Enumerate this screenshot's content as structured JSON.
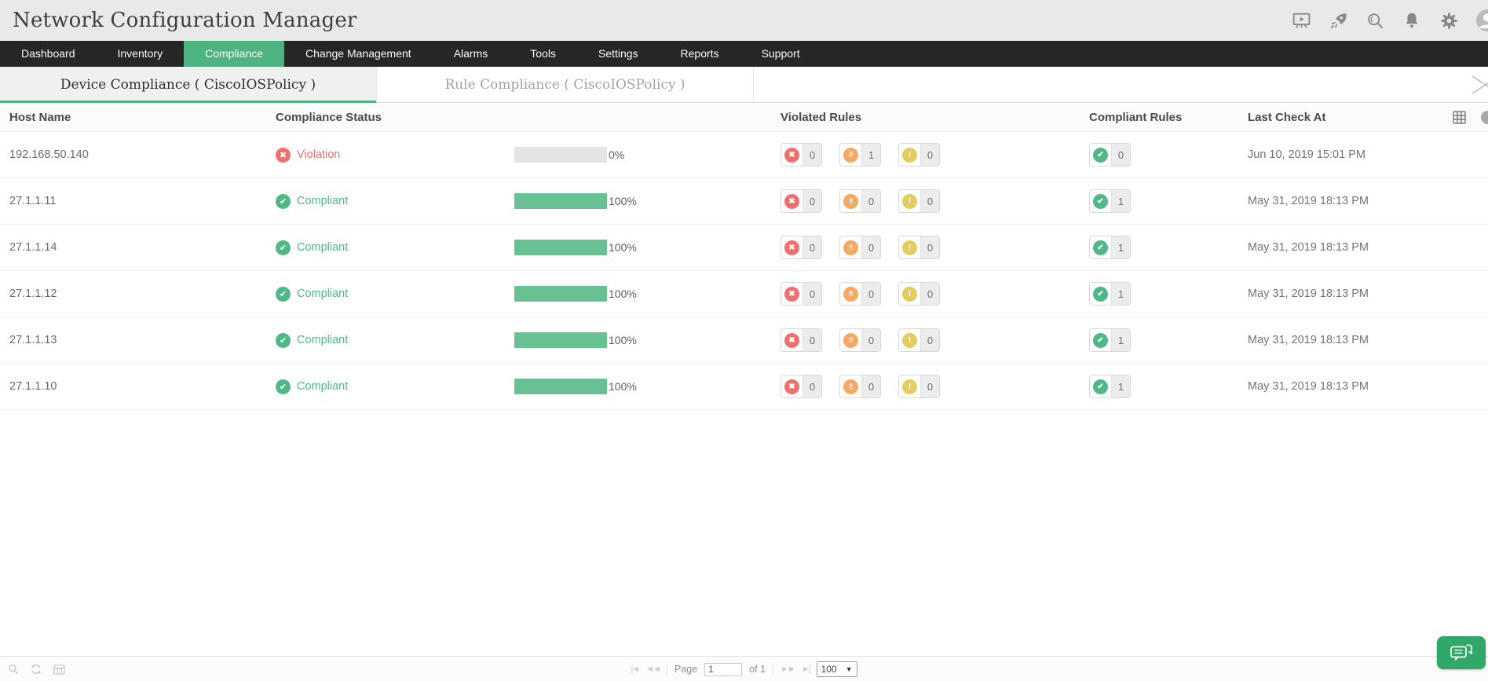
{
  "app": {
    "title": "Network Configuration Manager"
  },
  "topbar": {
    "icons": [
      "presentation-play-icon",
      "rocket-icon",
      "search-icon",
      "bell-icon",
      "gear-icon",
      "avatar"
    ]
  },
  "nav": {
    "items": [
      {
        "label": "Dashboard",
        "active": false
      },
      {
        "label": "Inventory",
        "active": false
      },
      {
        "label": "Compliance",
        "active": true
      },
      {
        "label": "Change Management",
        "active": false
      },
      {
        "label": "Alarms",
        "active": false
      },
      {
        "label": "Tools",
        "active": false
      },
      {
        "label": "Settings",
        "active": false
      },
      {
        "label": "Reports",
        "active": false
      },
      {
        "label": "Support",
        "active": false
      }
    ]
  },
  "tabs": {
    "items": [
      {
        "label": "Device Compliance ( CiscoIOSPolicy )",
        "active": true
      },
      {
        "label": "Rule Compliance ( CiscoIOSPolicy )",
        "active": false
      }
    ]
  },
  "table": {
    "headers": {
      "host": "Host Name",
      "status": "Compliance Status",
      "violated": "Violated Rules",
      "compliant": "Compliant Rules",
      "last_check": "Last Check At"
    },
    "status_icons": {
      "violation": "✖",
      "compliant": "✔"
    },
    "badge_icons": {
      "critical": "✖",
      "major": "!!",
      "minor": "!",
      "compliant": "✔"
    },
    "rows": [
      {
        "host": "192.168.50.140",
        "status": "Violation",
        "status_type": "violation",
        "progress_pct": 0,
        "progress_label": "0%",
        "violated": {
          "critical": 0,
          "major": 1,
          "minor": 0
        },
        "compliant": 0,
        "last_check": "Jun 10, 2019 15:01 PM"
      },
      {
        "host": "27.1.1.11",
        "status": "Compliant",
        "status_type": "compliant",
        "progress_pct": 100,
        "progress_label": "100%",
        "violated": {
          "critical": 0,
          "major": 0,
          "minor": 0
        },
        "compliant": 1,
        "last_check": "May 31, 2019 18:13 PM"
      },
      {
        "host": "27.1.1.14",
        "status": "Compliant",
        "status_type": "compliant",
        "progress_pct": 100,
        "progress_label": "100%",
        "violated": {
          "critical": 0,
          "major": 0,
          "minor": 0
        },
        "compliant": 1,
        "last_check": "May 31, 2019 18:13 PM"
      },
      {
        "host": "27.1.1.12",
        "status": "Compliant",
        "status_type": "compliant",
        "progress_pct": 100,
        "progress_label": "100%",
        "violated": {
          "critical": 0,
          "major": 0,
          "minor": 0
        },
        "compliant": 1,
        "last_check": "May 31, 2019 18:13 PM"
      },
      {
        "host": "27.1.1.13",
        "status": "Compliant",
        "status_type": "compliant",
        "progress_pct": 100,
        "progress_label": "100%",
        "violated": {
          "critical": 0,
          "major": 0,
          "minor": 0
        },
        "compliant": 1,
        "last_check": "May 31, 2019 18:13 PM"
      },
      {
        "host": "27.1.1.10",
        "status": "Compliant",
        "status_type": "compliant",
        "progress_pct": 100,
        "progress_label": "100%",
        "violated": {
          "critical": 0,
          "major": 0,
          "minor": 0
        },
        "compliant": 1,
        "last_check": "May 31, 2019 18:13 PM"
      }
    ]
  },
  "footer": {
    "page_label": "Page",
    "page_value": "1",
    "of_label": "of 1",
    "page_size": "100",
    "icons": {
      "first": "|◄",
      "prev": "◄◄",
      "next": "►►",
      "last": "►|",
      "dropdown": "▼"
    }
  },
  "colors": {
    "accent": "#4db380",
    "nav_bg": "#262626",
    "violation": "#ef6f6f",
    "major": "#f5a963",
    "minor": "#e3cd5f",
    "compliant": "#4fb886",
    "fill": "#68c192"
  }
}
